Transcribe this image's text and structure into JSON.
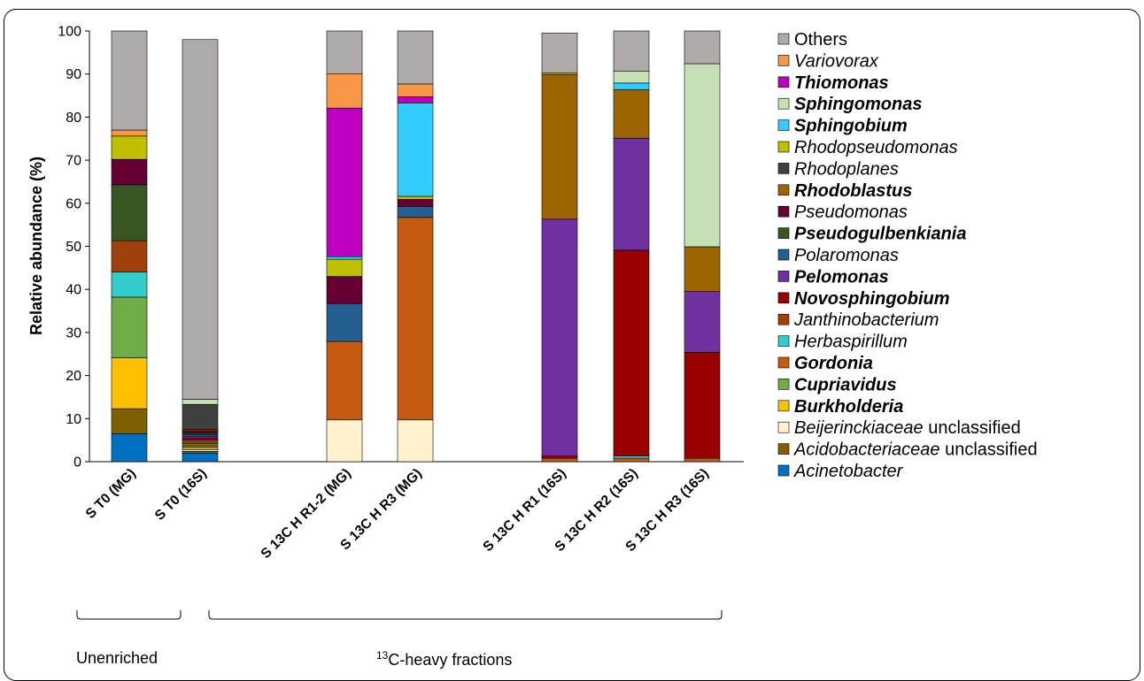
{
  "chart_data": {
    "type": "bar",
    "stacked": true,
    "ylabel": "Relative abundance (%)",
    "ylim": [
      0,
      100
    ],
    "yticks": [
      "0",
      "10",
      "20",
      "30",
      "40",
      "50",
      "60",
      "70",
      "80",
      "90",
      "100"
    ],
    "categories": [
      "S T0 (MG)",
      "S T0 (16S)",
      "S 13C H R1-2 (MG)",
      "S 13C H R3 (MG)",
      "S 13C H R1 (16S)",
      "S 13C H R2 (16S)",
      "S 13C H R3 (16S)"
    ],
    "groups": [
      {
        "label": "Unenriched",
        "members": [
          0,
          1
        ]
      },
      {
        "label_sup": "13",
        "label_rest": "C-heavy fractions",
        "members": [
          2,
          3,
          4,
          5,
          6
        ]
      }
    ],
    "series": [
      {
        "name": "Acinetobacter",
        "color": "#0070C0",
        "style": "italic",
        "values": [
          6.5,
          2.0,
          0,
          0,
          0,
          0,
          0
        ]
      },
      {
        "name": "Acidobacteriaceae",
        "suffix": " unclassified",
        "color": "#7F6000",
        "style": "italic",
        "values": [
          5.8,
          0.4,
          0,
          0,
          0,
          0,
          0
        ]
      },
      {
        "name": "Beijerinckiaceae",
        "suffix": " unclassified",
        "color": "#FFF2CC",
        "style": "italic",
        "values": [
          0,
          0.4,
          9.7,
          9.7,
          0,
          0,
          0
        ]
      },
      {
        "name": "Burkholderia",
        "color": "#FFC000",
        "style": "bold",
        "values": [
          11.8,
          0.5,
          0,
          0,
          0,
          0,
          0
        ]
      },
      {
        "name": "Cupriavidus",
        "color": "#70AD47",
        "style": "bold",
        "values": [
          14.1,
          0.4,
          0,
          0,
          0,
          0,
          0
        ]
      },
      {
        "name": "Gordonia",
        "color": "#C55A11",
        "style": "bold",
        "values": [
          0,
          0.5,
          18.2,
          47.0,
          0.8,
          0.8,
          0.8
        ]
      },
      {
        "name": "Herbaspirillum",
        "color": "#33CCCC",
        "style": "italic",
        "values": [
          5.8,
          0.3,
          0,
          0,
          0,
          0.5,
          0
        ]
      },
      {
        "name": "Janthinobacterium",
        "color": "#A0410D",
        "style": "italic",
        "values": [
          7.3,
          0.5,
          0,
          0,
          0,
          0,
          0
        ]
      },
      {
        "name": "Novosphingobium",
        "color": "#990000",
        "style": "bold",
        "values": [
          0,
          0.5,
          0,
          0,
          0.5,
          47.8,
          24.6
        ]
      },
      {
        "name": "Pelomonas",
        "color": "#7030A0",
        "style": "bold",
        "values": [
          0,
          0.4,
          0,
          0,
          55.0,
          26.0,
          14.1
        ]
      },
      {
        "name": "Polaromonas",
        "color": "#255E91",
        "style": "italic",
        "values": [
          0,
          0.4,
          8.8,
          2.5,
          0,
          0,
          0
        ]
      },
      {
        "name": "Pseudogulbenkiania",
        "color": "#375623",
        "style": "bold",
        "values": [
          13.0,
          0.3,
          0,
          0,
          0,
          0,
          0
        ]
      },
      {
        "name": "Pseudomonas",
        "color": "#660033",
        "style": "italic",
        "values": [
          5.9,
          0.6,
          6.3,
          1.7,
          0,
          0,
          0
        ]
      },
      {
        "name": "Rhodoblastus",
        "color": "#9C6500",
        "style": "bold",
        "values": [
          0,
          0.3,
          0,
          0,
          33.6,
          11.3,
          10.4
        ]
      },
      {
        "name": "Rhodoplanes",
        "color": "#404040",
        "style": "italic",
        "values": [
          0,
          5.8,
          0,
          0,
          0,
          0,
          0
        ]
      },
      {
        "name": "Rhodopseudomonas",
        "color": "#BFBF00",
        "style": "italic",
        "values": [
          5.4,
          0,
          4.0,
          0.7,
          0.4,
          0,
          0
        ]
      },
      {
        "name": "Sphingobium",
        "color": "#33CCFF",
        "style": "bold",
        "values": [
          0,
          0,
          0.6,
          21.7,
          0,
          1.5,
          0
        ]
      },
      {
        "name": "Sphingomonas",
        "color": "#C5E0B4",
        "style": "bold",
        "values": [
          0,
          1.2,
          0,
          0,
          0,
          2.8,
          42.5
        ]
      },
      {
        "name": "Thiomonas",
        "color": "#C000C0",
        "style": "bold",
        "values": [
          0,
          0,
          34.5,
          1.4,
          0,
          0,
          0
        ]
      },
      {
        "name": "Variovorax",
        "color": "#F79646",
        "style": "italic",
        "values": [
          1.4,
          0,
          7.9,
          3.0,
          0,
          0,
          0
        ]
      },
      {
        "name": "Others",
        "color": "#AFABAB",
        "style": "normal",
        "values": [
          23.0,
          83.5,
          10.0,
          12.3,
          9.2,
          9.3,
          7.6
        ]
      }
    ]
  }
}
